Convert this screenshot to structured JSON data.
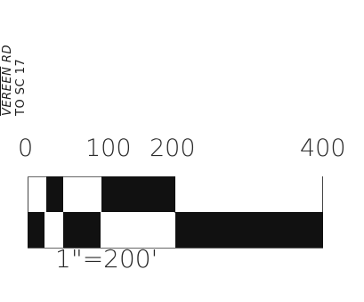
{
  "road": {
    "name_prefix": "VEREEN",
    "name_suffix": "RD",
    "destination": "TO SC 17"
  },
  "scale": {
    "tick_labels": [
      "0",
      "100",
      "200",
      "400"
    ],
    "ratio": "1\"=200'"
  }
}
